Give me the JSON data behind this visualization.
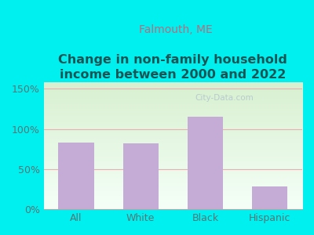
{
  "title": "Change in non-family household\nincome between 2000 and 2022",
  "subtitle": "Falmouth, ME",
  "categories": [
    "All",
    "White",
    "Black",
    "Hispanic"
  ],
  "values": [
    83,
    82,
    115,
    28
  ],
  "bar_color": "#c4acd6",
  "title_fontsize": 11.5,
  "subtitle_fontsize": 10,
  "ylabel_ticks": [
    "0%",
    "50%",
    "100%",
    "150%"
  ],
  "ytick_vals": [
    0,
    50,
    100,
    150
  ],
  "ylim": [
    0,
    158
  ],
  "background_outer": "#00f0f0",
  "background_inner": "#e8f5e0",
  "grid_color": "#e8b0b0",
  "watermark": "City-Data.com",
  "title_color": "#1a5555",
  "subtitle_color": "#b07080",
  "tick_label_color": "#557777",
  "grid_linewidth": 0.8
}
